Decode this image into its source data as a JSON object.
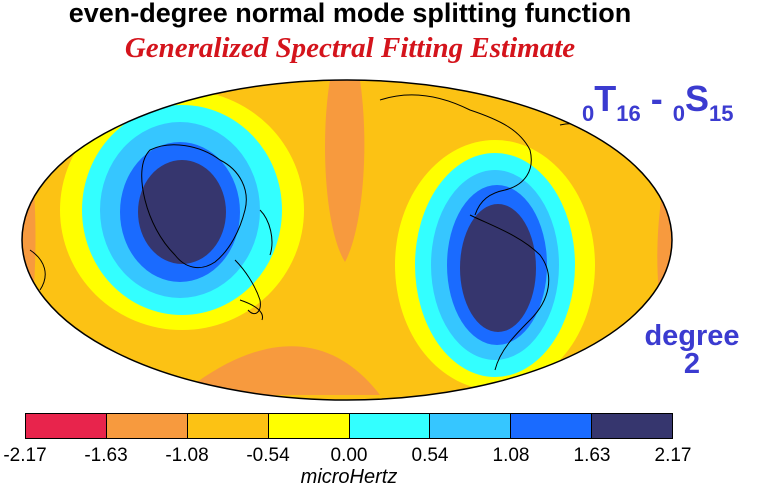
{
  "title": "even-degree normal mode splitting function",
  "subtitle": "Generalized Spectral Fitting Estimate",
  "mode": {
    "left_prefix": "0",
    "left_main": "T",
    "left_sub": "16",
    "separator": " - ",
    "right_prefix": "0",
    "right_main": "S",
    "right_sub": "15"
  },
  "degree": {
    "line1": "degree",
    "line2": "2"
  },
  "colorbar": {
    "unit": "microHertz",
    "ticks": [
      "-2.17",
      "-1.63",
      "-1.08",
      "-0.54",
      "0.00",
      "0.54",
      "1.08",
      "1.63",
      "2.17"
    ],
    "colors": [
      "#e8244c",
      "#f79a3e",
      "#fcc214",
      "#ffff00",
      "#33ffff",
      "#36c6ff",
      "#1a6bff",
      "#36366e"
    ]
  },
  "map_colors": {
    "ocean_base": "#fcc214",
    "land_outline": "#000000",
    "frame": "#000000"
  }
}
